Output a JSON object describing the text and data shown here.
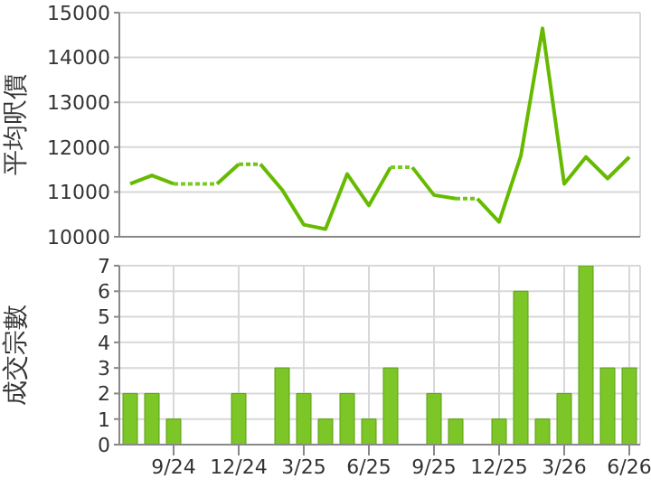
{
  "chart_data": [
    {
      "type": "line",
      "ylabel": "平均呎價",
      "categories": [
        null,
        null,
        null,
        null,
        null,
        null,
        null,
        null,
        null,
        null,
        null,
        null,
        null,
        null,
        null,
        null,
        null,
        null,
        null,
        null,
        null,
        null,
        null,
        null
      ],
      "series": [
        {
          "color": "#66bb00",
          "line_style": "solid",
          "values": [
            11180,
            11370,
            11180,
            null,
            11180,
            11620,
            null,
            null,
            null,
            null,
            null,
            null,
            null,
            11550,
            10930,
            10850,
            null,
            null,
            null,
            null,
            null,
            null,
            null,
            null
          ]
        },
        {
          "color": "#66bb00",
          "line_style": "solid",
          "values": [
            null,
            null,
            null,
            null,
            null,
            null,
            11620,
            11050,
            10270,
            10170,
            11400,
            10700,
            11550,
            null,
            null,
            null,
            10850,
            10330,
            11800,
            14650,
            11180,
            11780,
            11300,
            11780
          ]
        },
        {
          "color": "#7acc22",
          "line_style": "dotted",
          "values": [
            null,
            null,
            11180,
            11180,
            11180,
            null,
            null,
            null,
            null,
            null,
            null,
            null,
            11550,
            11550,
            null,
            null,
            null,
            null,
            null,
            null,
            null,
            null,
            null,
            null
          ]
        },
        {
          "color": "#72c416",
          "line_style": "dotted",
          "values": [
            null,
            null,
            null,
            null,
            null,
            11620,
            11620,
            null,
            null,
            null,
            null,
            null,
            null,
            null,
            null,
            10850,
            10850,
            null,
            null,
            null,
            null,
            null,
            null,
            null
          ]
        }
      ],
      "ylim": [
        10000,
        15000
      ],
      "yticks": [
        10000,
        11000,
        12000,
        13000,
        14000,
        15000
      ],
      "grid": true,
      "tick_labels": "y"
    },
    {
      "type": "bar",
      "ylabel": "成交宗數",
      "categories": [
        null,
        null,
        "9/24",
        null,
        null,
        "12/24",
        null,
        null,
        "3/25",
        null,
        null,
        "6/25",
        null,
        null,
        "9/25",
        null,
        null,
        "12/25",
        null,
        null,
        "3/26",
        null,
        null,
        "6/26"
      ],
      "values": [
        2,
        2,
        1,
        0,
        0,
        2,
        0,
        3,
        2,
        1,
        2,
        1,
        3,
        0,
        2,
        1,
        0,
        1,
        6,
        1,
        2,
        7,
        3,
        3
      ],
      "color": "#7cc628",
      "ylim": [
        0,
        7
      ],
      "yticks": [
        0,
        1,
        2,
        3,
        4,
        5,
        6,
        7
      ],
      "grid": true
    }
  ]
}
